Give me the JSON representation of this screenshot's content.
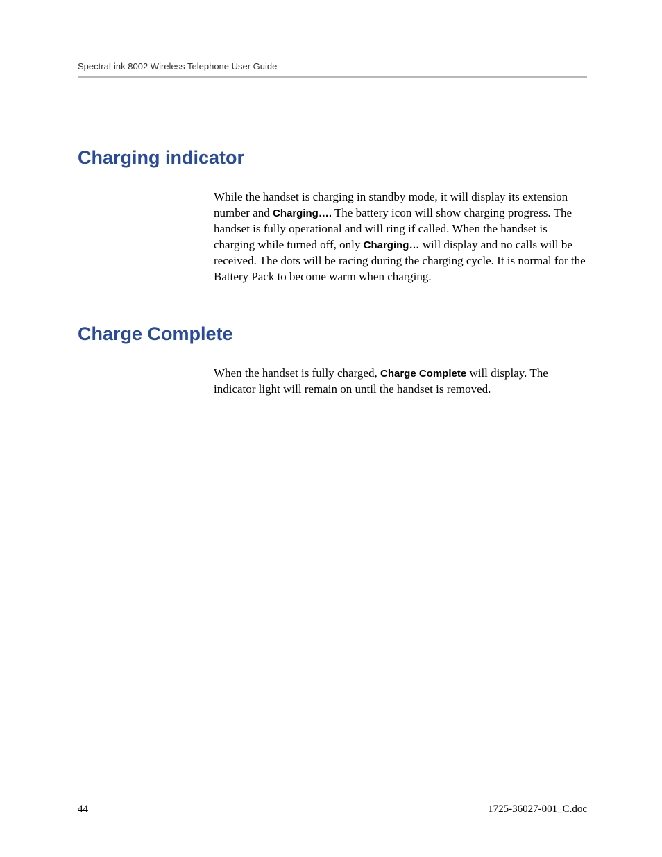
{
  "header": {
    "title": "SpectraLink 8002 Wireless Telephone User Guide"
  },
  "sections": [
    {
      "heading": "Charging indicator",
      "body_parts": [
        {
          "text": "While the handset is charging in standby mode, it will display its extension number and ",
          "bold": false
        },
        {
          "text": "Charging….",
          "bold": true
        },
        {
          "text": " The battery icon will show charging progress. The handset is fully operational and will ring if called. When the handset is charging while turned off, only ",
          "bold": false
        },
        {
          "text": "Charging…",
          "bold": true
        },
        {
          "text": " will display and no calls will be received. The dots will be racing during the charging cycle. It is normal for the Battery Pack to become warm when charging.",
          "bold": false
        }
      ]
    },
    {
      "heading": "Charge Complete",
      "body_parts": [
        {
          "text": "When the handset is fully charged, ",
          "bold": false
        },
        {
          "text": "Charge Complete",
          "bold": true
        },
        {
          "text": " will display. The indicator light will remain on until the handset is removed.",
          "bold": false
        }
      ]
    }
  ],
  "footer": {
    "page_number": "44",
    "doc_id": "1725-36027-001_C.doc"
  },
  "colors": {
    "heading_color": "#2a4b9b",
    "rule_color": "#b8b8b8",
    "text_color": "#000000",
    "header_text_color": "#333333",
    "background": "#ffffff"
  },
  "typography": {
    "heading_font": "Trebuchet MS",
    "heading_size_pt": 20,
    "body_font": "Palatino",
    "body_size_pt": 12,
    "header_size_pt": 9,
    "footer_size_pt": 11
  }
}
